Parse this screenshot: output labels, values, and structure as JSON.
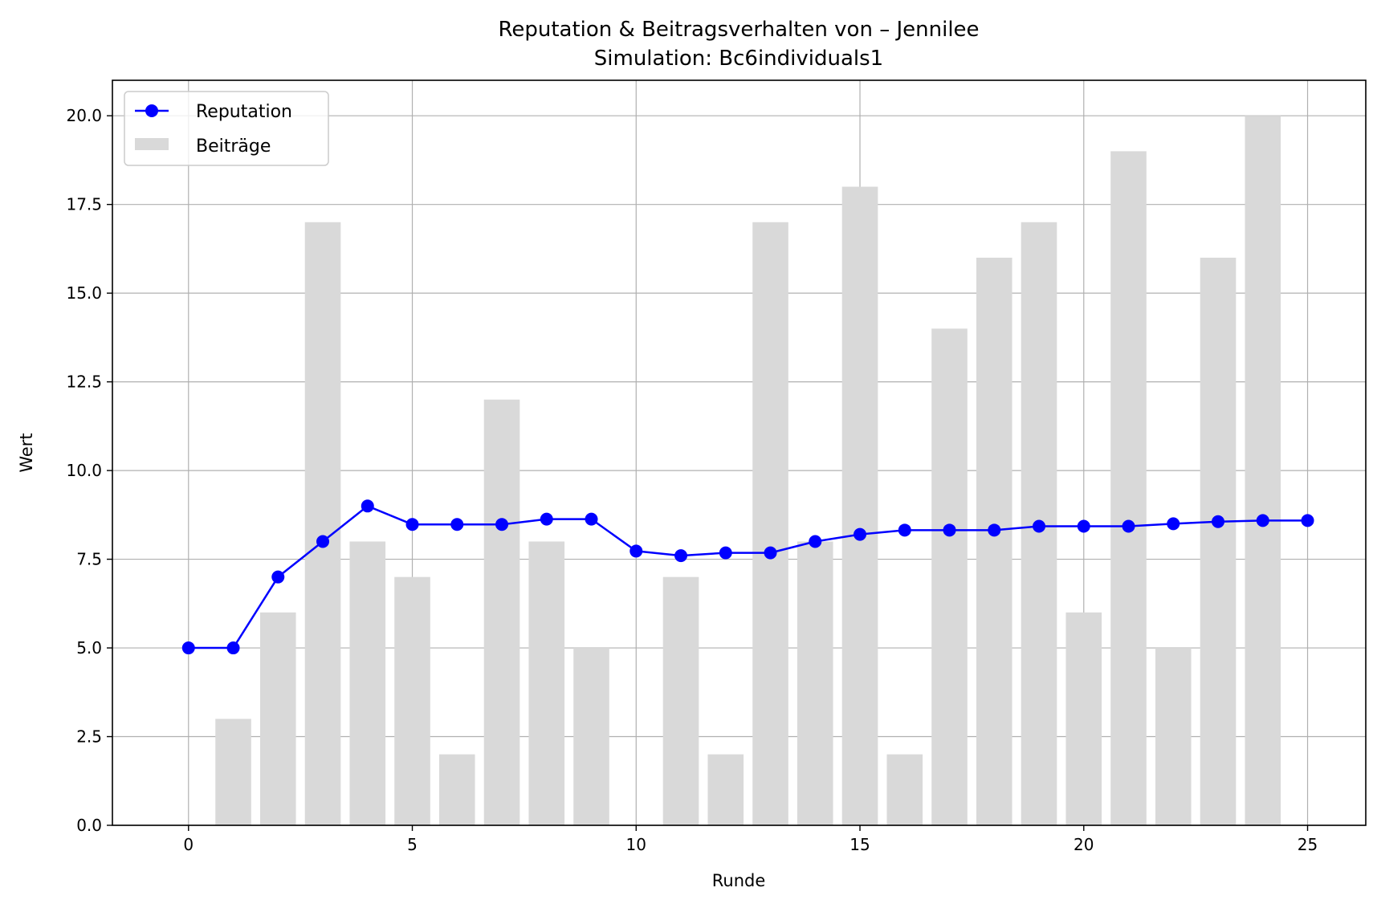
{
  "chart_data": {
    "type": "bar+line",
    "title": "Reputation & Beitragsverhalten von – Jennilee",
    "subtitle": "Simulation: Bc6individuals1",
    "xlabel": "Runde",
    "ylabel": "Wert",
    "xlim": [
      -1.7,
      26.3
    ],
    "ylim": [
      0,
      21
    ],
    "x_ticks": [
      "0",
      "5",
      "10",
      "15",
      "20",
      "25"
    ],
    "y_ticks": [
      "0.0",
      "2.5",
      "5.0",
      "7.5",
      "10.0",
      "12.5",
      "15.0",
      "17.5",
      "20.0"
    ],
    "grid": true,
    "legend_placement": "upper-left",
    "series": [
      {
        "name": "Reputation",
        "kind": "line",
        "color": "#0000ff",
        "marker": "circle",
        "x": [
          0,
          1,
          2,
          3,
          4,
          5,
          6,
          7,
          8,
          9,
          10,
          11,
          12,
          13,
          14,
          15,
          16,
          17,
          18,
          19,
          20,
          21,
          22,
          23,
          24,
          25
        ],
        "values": [
          5.0,
          5.0,
          7.0,
          8.0,
          9.0,
          8.48,
          8.48,
          8.48,
          8.63,
          8.63,
          7.73,
          7.6,
          7.68,
          7.68,
          8.0,
          8.2,
          8.32,
          8.32,
          8.32,
          8.43,
          8.43,
          8.43,
          8.5,
          8.56,
          8.59,
          8.59
        ]
      },
      {
        "name": "Beiträge",
        "kind": "bar",
        "color": "#d9d9d9",
        "x": [
          1,
          2,
          3,
          4,
          5,
          6,
          7,
          8,
          9,
          11,
          12,
          13,
          14,
          15,
          16,
          17,
          18,
          19,
          20,
          21,
          22,
          23,
          24
        ],
        "values": [
          3,
          6,
          17,
          8,
          7,
          2,
          12,
          8,
          5,
          7,
          2,
          17,
          8,
          18,
          2,
          14,
          16,
          17,
          6,
          19,
          5,
          16,
          20
        ]
      }
    ]
  }
}
